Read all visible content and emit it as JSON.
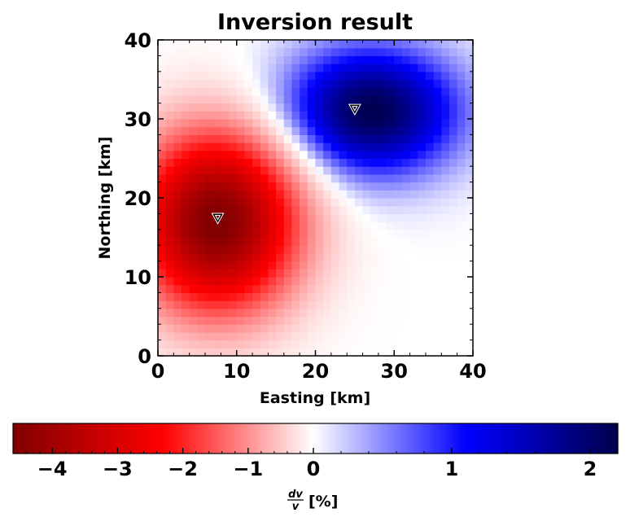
{
  "chart_data": {
    "type": "heatmap",
    "title": "Inversion result",
    "xlabel": "Easting [km]",
    "ylabel": "Northing [km]",
    "xlim": [
      0,
      40
    ],
    "ylim": [
      0,
      40
    ],
    "xticks": [
      "0",
      "10",
      "20",
      "30",
      "40"
    ],
    "yticks": [
      "0",
      "10",
      "20",
      "30",
      "40"
    ],
    "grid_cells": 40,
    "anomalies": [
      {
        "sign": "negative",
        "center": [
          7.5,
          17
        ],
        "peak_percent": -4.6,
        "radius_km": [
          10,
          11
        ]
      },
      {
        "sign": "positive",
        "center": [
          27,
          31
        ],
        "peak_percent": 2.2,
        "radius_km": [
          11,
          8
        ]
      }
    ],
    "stations": [
      {
        "x": 7.6,
        "y": 17.5
      },
      {
        "x": 25.0,
        "y": 31.3
      }
    ],
    "colorbar": {
      "label": "dv/v [%]",
      "label_numerator": "dv",
      "label_denominator": "v",
      "label_unit": "[%]",
      "min": -4.6,
      "max": 2.2,
      "ticks": [
        -4,
        -3,
        -2,
        -1,
        0,
        1,
        2
      ],
      "tick_labels": [
        "−4",
        "−3",
        "−2",
        "−1",
        "0",
        "1",
        "2"
      ],
      "colormap": "seismic_r",
      "colors": {
        "negative_end": "#800000",
        "mid_negative": "#ff0000",
        "zero": "#ffffff",
        "mid_positive": "#0000ff",
        "positive_end": "#00004d"
      }
    },
    "station_marker": "down-triangle"
  }
}
